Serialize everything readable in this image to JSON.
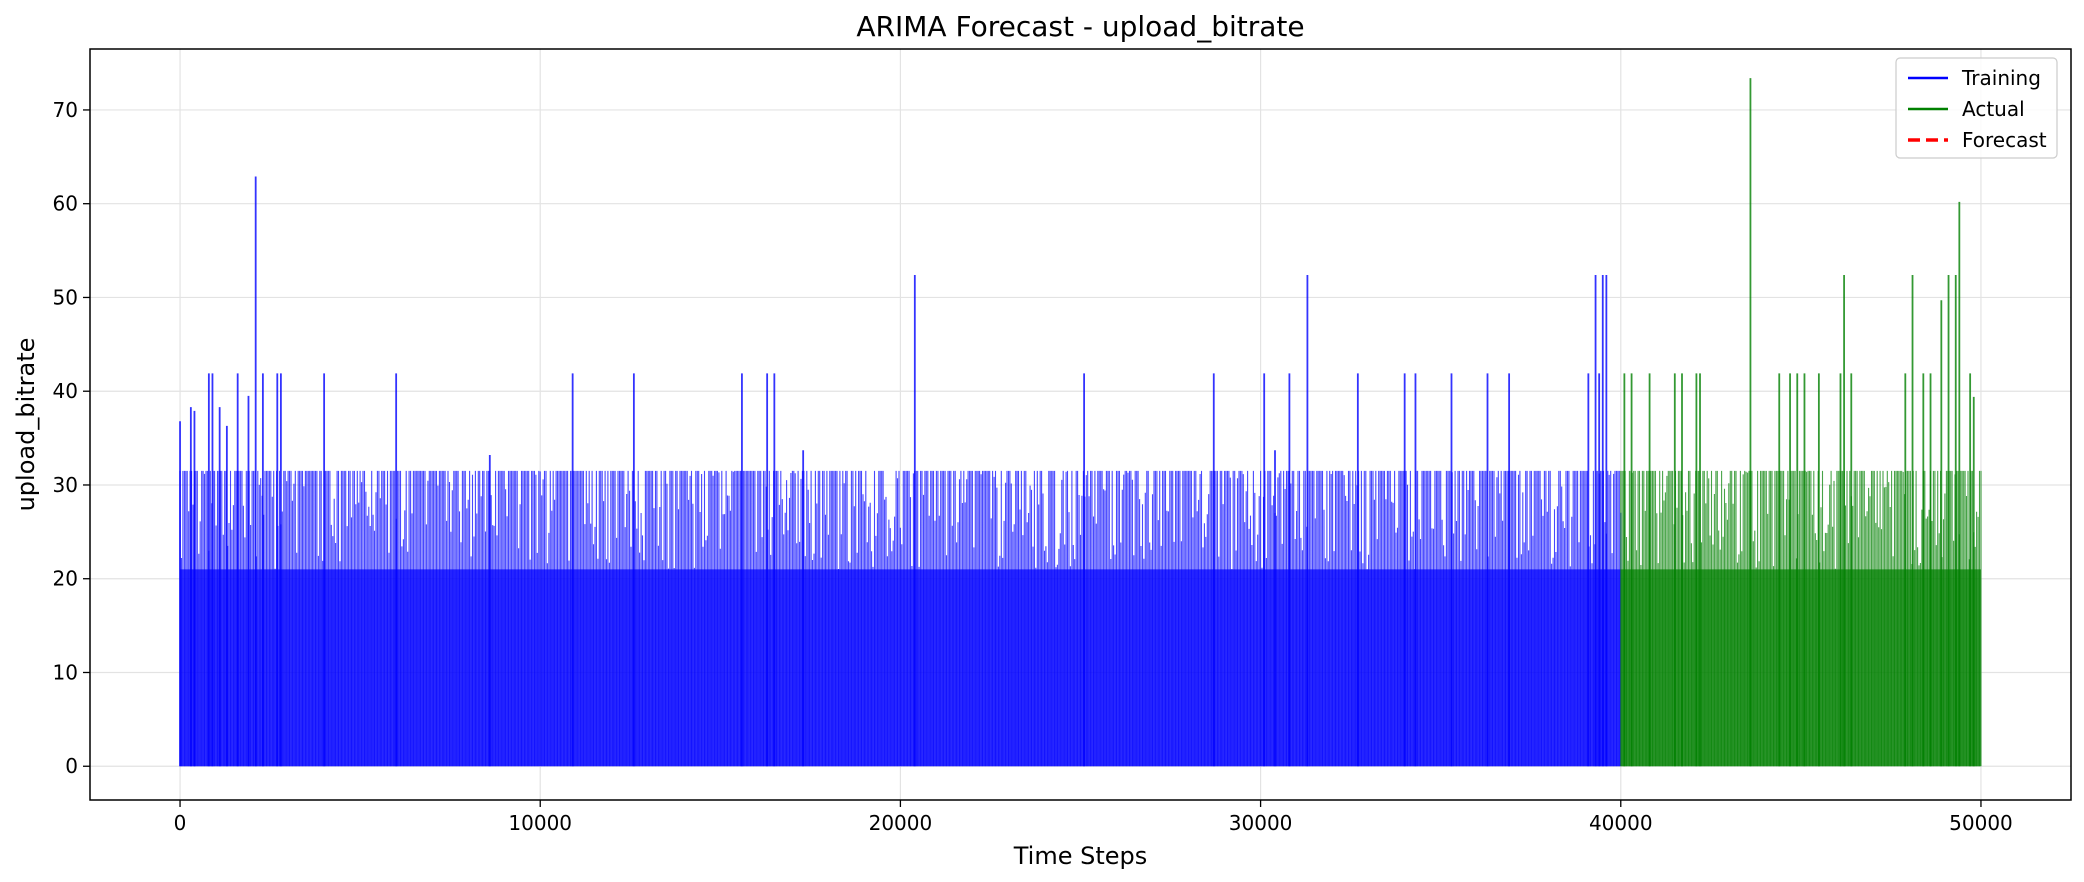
{
  "chart_data": {
    "type": "line",
    "title": "ARIMA Forecast - upload_bitrate",
    "xlabel": "Time Steps",
    "ylabel": "upload_bitrate",
    "xlim": [
      -2500,
      52500
    ],
    "ylim": [
      -3.6,
      76.5
    ],
    "xticks": [
      0,
      10000,
      20000,
      30000,
      40000,
      50000
    ],
    "yticks": [
      0,
      10,
      20,
      30,
      40,
      50,
      60,
      70
    ],
    "grid": true,
    "legend_position": "top-right",
    "baseline_level": 21,
    "typical_high": 31.5,
    "series": [
      {
        "name": "Training",
        "color": "#0000ff",
        "x_range": [
          0,
          40000
        ],
        "style": "solid",
        "spikes": [
          [
            0,
            36.8
          ],
          [
            300,
            38.3
          ],
          [
            400,
            37.9
          ],
          [
            800,
            41.9
          ],
          [
            900,
            41.9
          ],
          [
            1100,
            38.3
          ],
          [
            1300,
            36.3
          ],
          [
            1600,
            41.9
          ],
          [
            1900,
            39.5
          ],
          [
            2100,
            62.9
          ],
          [
            2300,
            41.9
          ],
          [
            2700,
            41.9
          ],
          [
            2800,
            41.9
          ],
          [
            4000,
            41.9
          ],
          [
            6000,
            41.9
          ],
          [
            8600,
            33.2
          ],
          [
            10900,
            41.9
          ],
          [
            12600,
            41.9
          ],
          [
            15600,
            41.9
          ],
          [
            16300,
            41.9
          ],
          [
            16500,
            41.9
          ],
          [
            17300,
            33.7
          ],
          [
            20400,
            52.4
          ],
          [
            25100,
            41.9
          ],
          [
            28700,
            41.9
          ],
          [
            30100,
            41.9
          ],
          [
            30400,
            33.7
          ],
          [
            30800,
            41.9
          ],
          [
            31300,
            52.4
          ],
          [
            32700,
            41.9
          ],
          [
            34000,
            41.9
          ],
          [
            34300,
            41.9
          ],
          [
            35300,
            41.9
          ],
          [
            36300,
            41.9
          ],
          [
            36900,
            41.9
          ],
          [
            39100,
            41.9
          ],
          [
            39300,
            52.4
          ],
          [
            39400,
            41.9
          ],
          [
            39500,
            52.4
          ],
          [
            39600,
            52.4
          ]
        ]
      },
      {
        "name": "Actual",
        "color": "#008000",
        "x_range": [
          40000,
          50000
        ],
        "style": "solid",
        "spikes": [
          [
            40100,
            41.9
          ],
          [
            40300,
            41.9
          ],
          [
            40800,
            41.9
          ],
          [
            41500,
            41.9
          ],
          [
            41700,
            41.9
          ],
          [
            42100,
            41.9
          ],
          [
            42200,
            41.9
          ],
          [
            43600,
            73.4
          ],
          [
            44400,
            41.9
          ],
          [
            44700,
            41.9
          ],
          [
            44900,
            41.9
          ],
          [
            45100,
            41.9
          ],
          [
            45500,
            41.9
          ],
          [
            46100,
            41.9
          ],
          [
            46200,
            52.4
          ],
          [
            46400,
            41.9
          ],
          [
            47900,
            41.9
          ],
          [
            48100,
            52.4
          ],
          [
            48400,
            41.9
          ],
          [
            48600,
            41.9
          ],
          [
            48900,
            49.7
          ],
          [
            49100,
            52.4
          ],
          [
            49300,
            52.4
          ],
          [
            49400,
            60.2
          ],
          [
            49700,
            41.9
          ],
          [
            49800,
            39.4
          ]
        ]
      },
      {
        "name": "Forecast",
        "color": "#ff0000",
        "style": "dashed",
        "x": [],
        "values": []
      }
    ]
  }
}
